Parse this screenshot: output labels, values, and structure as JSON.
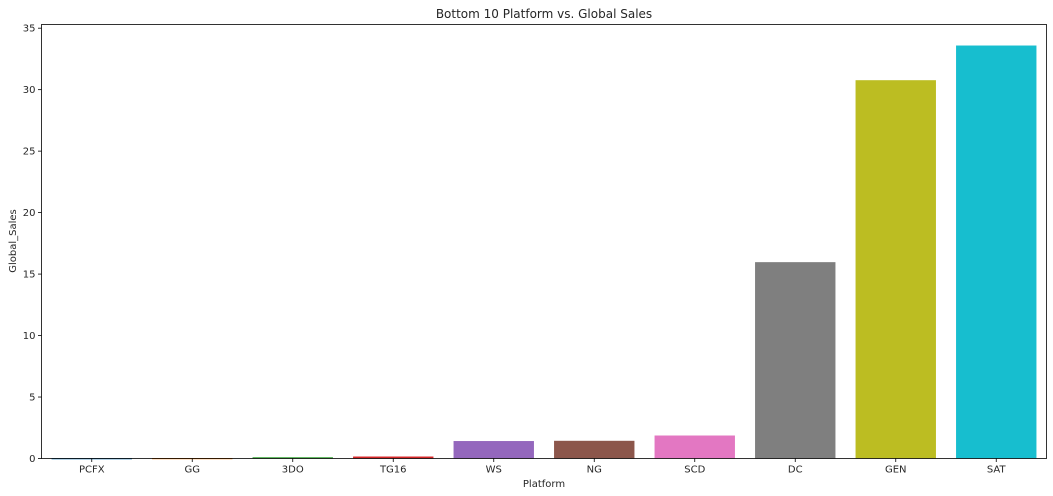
{
  "chart_data": {
    "type": "bar",
    "title": "Bottom 10 Platform vs. Global Sales",
    "xlabel": "Platform",
    "ylabel": "Global_Sales",
    "categories": [
      "PCFX",
      "GG",
      "3DO",
      "TG16",
      "WS",
      "NG",
      "SCD",
      "DC",
      "GEN",
      "SAT"
    ],
    "values": [
      0.03,
      0.04,
      0.1,
      0.16,
      1.42,
      1.44,
      1.87,
      15.97,
      30.77,
      33.59
    ],
    "colors": [
      "#1f77b4",
      "#ff7f0e",
      "#2ca02c",
      "#d62728",
      "#9467bd",
      "#8c564b",
      "#e377c2",
      "#7f7f7f",
      "#bcbd22",
      "#17becf"
    ],
    "ylim": [
      0,
      35.3
    ],
    "yticks": [
      0,
      5,
      10,
      15,
      20,
      25,
      30,
      35
    ],
    "grid": false
  }
}
